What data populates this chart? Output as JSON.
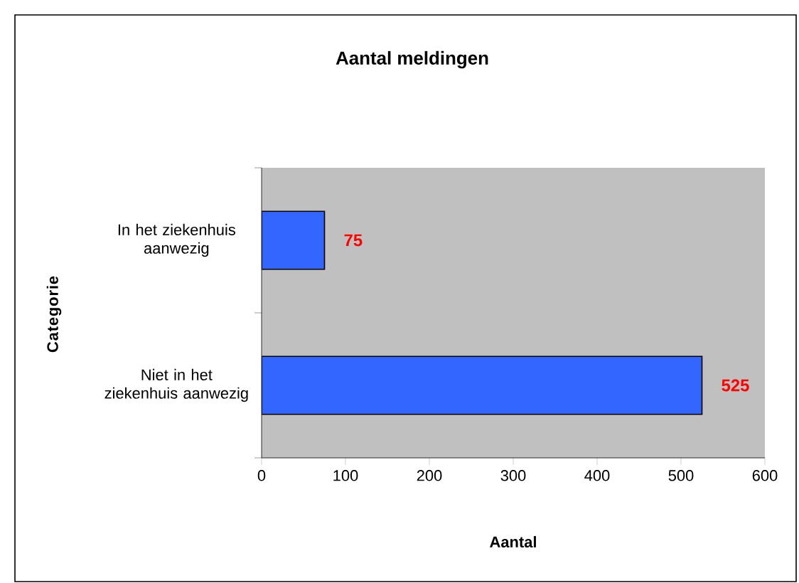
{
  "chart_data": {
    "type": "bar",
    "orientation": "horizontal",
    "title": "Aantal meldingen",
    "xlabel": "Aantal",
    "ylabel": "Categorie",
    "categories": [
      "In het ziekenhuis aanwezig",
      "Niet in het ziekenhuis aanwezig"
    ],
    "values": [
      75,
      525
    ],
    "color": "#3366ff",
    "xlim": [
      0,
      600
    ],
    "xticks": [
      0,
      100,
      200,
      300,
      400,
      500,
      600
    ],
    "data_labels": true
  }
}
